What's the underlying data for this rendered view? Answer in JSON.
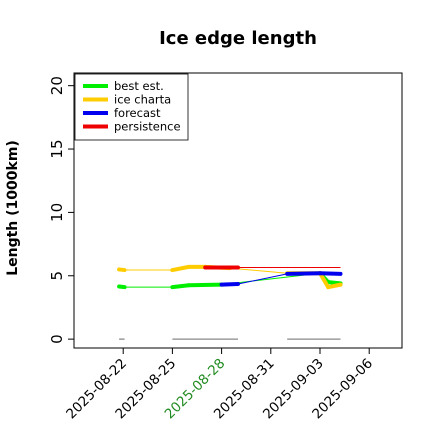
{
  "chart_data": {
    "type": "line",
    "title": "Ice edge length",
    "xlabel": "",
    "ylabel": "Length (1000km)",
    "ylim": [
      -0.7,
      21
    ],
    "xlim": [
      "2025-08-19",
      "2025-09-08"
    ],
    "yticks": [
      "0",
      "5",
      "10",
      "15",
      "20"
    ],
    "xticks": [
      {
        "label": "2025-08-22",
        "color": "#000000"
      },
      {
        "label": "2025-08-25",
        "color": "#000000"
      },
      {
        "label": "2025-08-28",
        "color": "#228B22"
      },
      {
        "label": "2025-08-31",
        "color": "#000000"
      },
      {
        "label": "2025-09-03",
        "color": "#000000"
      },
      {
        "label": "2025-09-06",
        "color": "#000000"
      }
    ],
    "grid": false,
    "legend_position": "top-left",
    "series": [
      {
        "name": "best est.",
        "color": "#00ee00",
        "points": [
          {
            "x": "2025-08-21 18:00",
            "y": 4.15
          },
          {
            "x": "2025-08-22 02:00",
            "y": 4.1
          },
          {
            "x": "2025-08-25 00:00",
            "y": 4.1
          },
          {
            "x": "2025-08-26 00:00",
            "y": 4.25
          },
          {
            "x": "2025-08-28 00:00",
            "y": 4.3
          },
          {
            "x": "2025-09-03 00:00",
            "y": 5.2
          },
          {
            "x": "2025-09-03 12:00",
            "y": 4.5
          },
          {
            "x": "2025-09-04 06:00",
            "y": 4.4
          }
        ]
      },
      {
        "name": "ice charta",
        "color": "#ffcc00",
        "points": [
          {
            "x": "2025-08-21 18:00",
            "y": 5.5
          },
          {
            "x": "2025-08-22 02:00",
            "y": 5.45
          },
          {
            "x": "2025-08-25 00:00",
            "y": 5.45
          },
          {
            "x": "2025-08-26 00:00",
            "y": 5.7
          },
          {
            "x": "2025-08-27 00:00",
            "y": 5.7
          },
          {
            "x": "2025-08-28 12:00",
            "y": 5.6
          },
          {
            "x": "2025-09-01 00:00",
            "y": 5.2
          },
          {
            "x": "2025-09-03 00:00",
            "y": 5.2
          },
          {
            "x": "2025-09-03 12:00",
            "y": 4.1
          },
          {
            "x": "2025-09-04 06:00",
            "y": 4.3
          }
        ]
      },
      {
        "name": "forecast",
        "color": "#0000ee",
        "points": [
          {
            "x": "2025-08-28 00:00",
            "y": 4.3
          },
          {
            "x": "2025-08-29 00:00",
            "y": 4.35
          },
          {
            "x": "2025-09-01 00:00",
            "y": 5.15
          },
          {
            "x": "2025-09-03 00:00",
            "y": 5.2
          },
          {
            "x": "2025-09-04 06:00",
            "y": 5.15
          }
        ]
      },
      {
        "name": "persistence",
        "color": "#ee0000",
        "points": [
          {
            "x": "2025-08-27 00:00",
            "y": 5.65
          },
          {
            "x": "2025-08-29 00:00",
            "y": 5.65
          },
          {
            "x": "2025-09-01 00:00",
            "y": 5.65
          },
          {
            "x": "2025-09-04 06:00",
            "y": 5.65
          }
        ]
      }
    ],
    "baseline_segments": {
      "color": "#888888",
      "y": 0,
      "ranges": [
        [
          "2025-08-21 18:00",
          "2025-08-22 02:00"
        ],
        [
          "2025-08-25 00:00",
          "2025-08-29 00:00"
        ],
        [
          "2025-09-01 00:00",
          "2025-09-04 06:00"
        ]
      ]
    }
  }
}
